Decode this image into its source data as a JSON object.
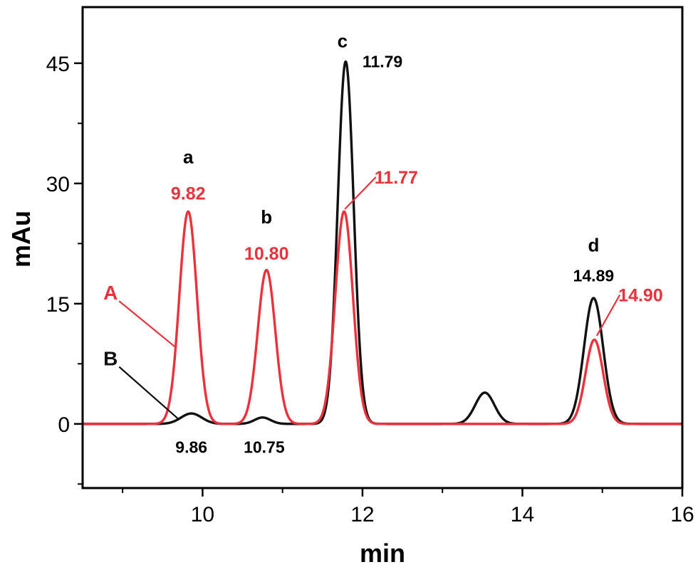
{
  "chart_data": {
    "type": "line",
    "title": "",
    "xlabel": "min",
    "ylabel": "mAu",
    "xlim": [
      8.5,
      16
    ],
    "ylim": [
      -8,
      52
    ],
    "xticks": [
      10,
      12,
      14,
      16
    ],
    "yticks": [
      0,
      15,
      30,
      45
    ],
    "xtick_labels": [
      "10",
      "12",
      "14",
      "16"
    ],
    "ytick_labels": [
      "0",
      "15",
      "30",
      "45"
    ],
    "grid": false,
    "colors": {
      "A": "#e8323c",
      "B": "#111111"
    },
    "series": [
      {
        "name": "A",
        "color": "#e8323c",
        "peaks": [
          {
            "rt": 9.82,
            "height": 26.5,
            "width": 0.11
          },
          {
            "rt": 10.8,
            "height": 19.2,
            "width": 0.11
          },
          {
            "rt": 11.77,
            "height": 26.5,
            "width": 0.11
          },
          {
            "rt": 14.9,
            "height": 10.5,
            "width": 0.11
          }
        ]
      },
      {
        "name": "B",
        "color": "#111111",
        "peaks": [
          {
            "rt": 9.86,
            "height": 1.3,
            "width": 0.13
          },
          {
            "rt": 10.75,
            "height": 0.8,
            "width": 0.1
          },
          {
            "rt": 11.79,
            "height": 45.2,
            "width": 0.1
          },
          {
            "rt": 13.53,
            "height": 3.9,
            "width": 0.12
          },
          {
            "rt": 14.89,
            "height": 15.7,
            "width": 0.12
          }
        ]
      }
    ],
    "peak_letters": [
      {
        "text": "a",
        "x": 9.82,
        "y": 32.5
      },
      {
        "text": "b",
        "x": 10.8,
        "y": 25.0
      },
      {
        "text": "c",
        "x": 11.75,
        "y": 47.0
      },
      {
        "text": "d",
        "x": 14.89,
        "y": 21.5
      }
    ],
    "annotations": [
      {
        "text": "9.82",
        "color": "red",
        "x": 9.82,
        "y": 28.0,
        "anchor": "middle"
      },
      {
        "text": "10.80",
        "color": "red",
        "x": 10.8,
        "y": 20.5,
        "anchor": "middle"
      },
      {
        "text": "11.77",
        "color": "red",
        "x": 12.15,
        "y": 30.0,
        "anchor": "start",
        "pointer": [
          11.78,
          26.8
        ]
      },
      {
        "text": "14.90",
        "color": "red",
        "x": 15.2,
        "y": 15.3,
        "anchor": "start",
        "pointer": [
          14.93,
          11.0
        ]
      },
      {
        "text": "11.79",
        "color": "black",
        "x": 12.0,
        "y": 44.5,
        "anchor": "start"
      },
      {
        "text": "14.89",
        "color": "black",
        "x": 14.89,
        "y": 17.8,
        "anchor": "middle"
      },
      {
        "text": "9.86",
        "color": "black",
        "x": 9.86,
        "y": -3.6,
        "anchor": "middle"
      },
      {
        "text": "10.75",
        "color": "black",
        "x": 10.77,
        "y": -3.6,
        "anchor": "middle"
      }
    ],
    "series_labels": [
      {
        "text": "A",
        "color": "red",
        "x": 8.85,
        "y": 15.5,
        "pointer": [
          9.67,
          9.5
        ]
      },
      {
        "text": "B",
        "color": "black",
        "x": 8.85,
        "y": 7.3,
        "pointer": [
          9.71,
          0.5
        ]
      }
    ]
  }
}
